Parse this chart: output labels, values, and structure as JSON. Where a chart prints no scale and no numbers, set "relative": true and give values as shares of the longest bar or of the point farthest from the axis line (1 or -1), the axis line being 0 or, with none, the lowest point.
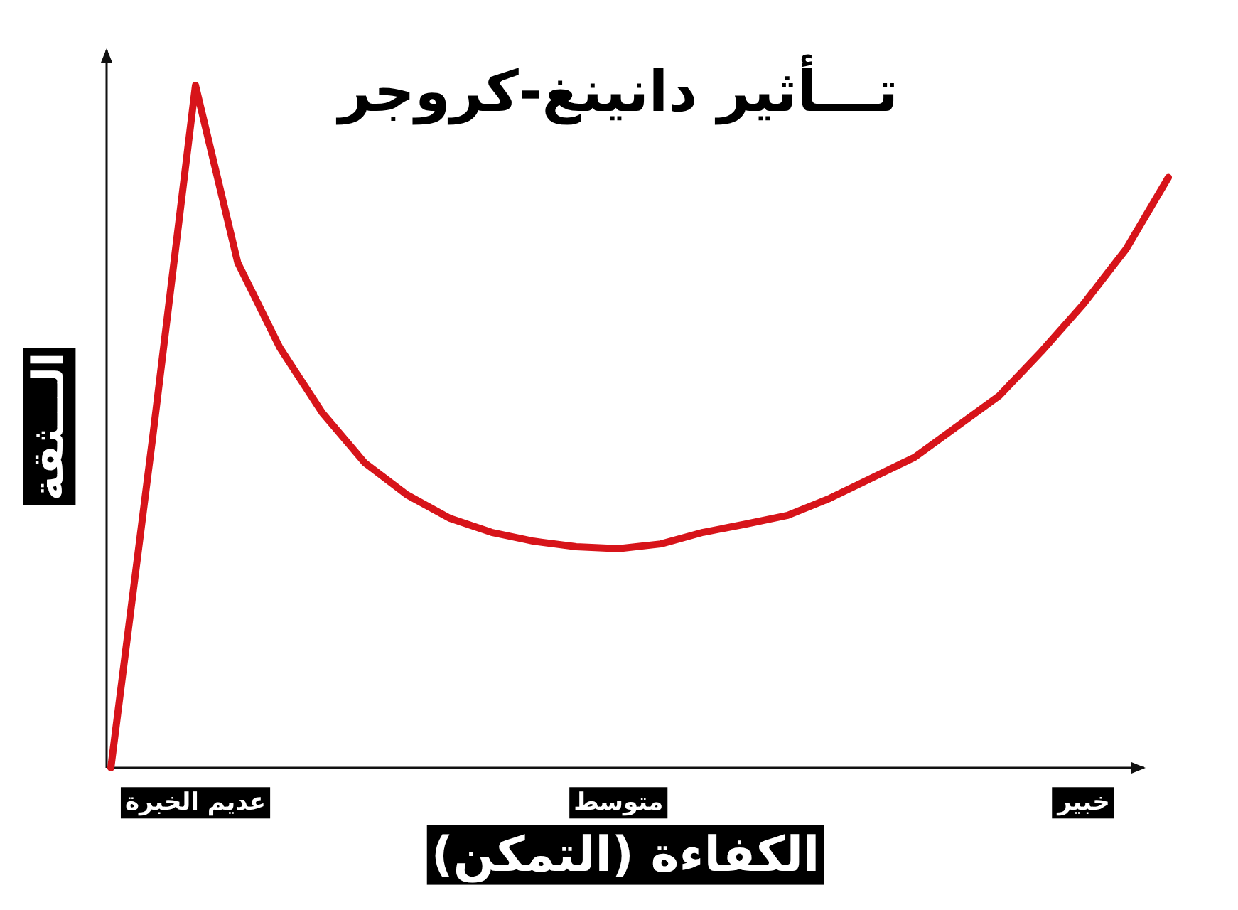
{
  "chart_data": {
    "type": "line",
    "title": "تـــأثير دانينغ-كروجر",
    "xlabel": "الكفاءة (التمكن)",
    "ylabel": "الـــثقة",
    "relative": true,
    "categories": [
      null,
      null,
      "عديم الخبرة",
      null,
      null,
      null,
      null,
      null,
      null,
      null,
      null,
      null,
      "متوسط",
      null,
      null,
      null,
      null,
      null,
      null,
      null,
      null,
      null,
      null,
      "خبير",
      null,
      null
    ],
    "marker": "none",
    "line_style": "solid",
    "series": [
      {
        "color": "#d7141a",
        "values": [
          0,
          0.49,
          1,
          0.74,
          0.615,
          0.52,
          0.447,
          0.4,
          0.366,
          0.345,
          0.332,
          0.324,
          0.321,
          0.328,
          0.345,
          0.357,
          0.37,
          0.395,
          0.425,
          0.455,
          0.5,
          0.545,
          0.61,
          0.68,
          0.76,
          0.865
        ]
      }
    ]
  }
}
